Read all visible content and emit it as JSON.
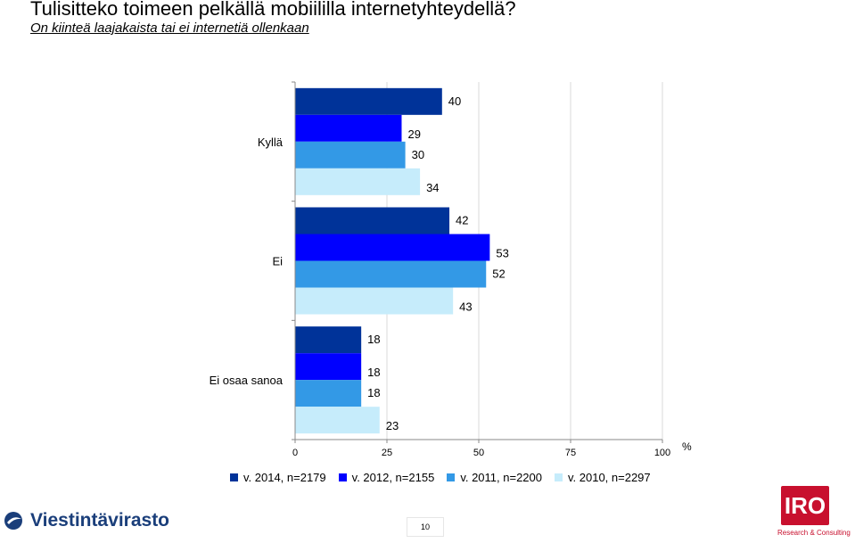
{
  "header": {
    "title": "Tulisitteko toimeen pelkällä mobiililla internetyhteydellä?",
    "subtitle": "On kiinteä laajakaista tai ei internetiä ollenkaan"
  },
  "chart_data": {
    "type": "bar",
    "orientation": "horizontal",
    "categories": [
      "Kyllä",
      "Ei",
      "Ei osaa sanoa"
    ],
    "series": [
      {
        "name": "v. 2014, n=2179",
        "color": "#003399",
        "values": [
          40,
          42,
          18
        ]
      },
      {
        "name": "v. 2012, n=2155",
        "color": "#0000ff",
        "values": [
          29,
          53,
          18
        ]
      },
      {
        "name": "v. 2011, n=2200",
        "color": "#3399e6",
        "values": [
          30,
          52,
          18
        ]
      },
      {
        "name": "v. 2010, n=2297",
        "color": "#c6ecfb",
        "values": [
          34,
          43,
          23
        ]
      }
    ],
    "xlim": [
      0,
      100
    ],
    "xticks": [
      0,
      25,
      50,
      75,
      100
    ],
    "xunit": "%",
    "grid": true,
    "legend_position": "bottom"
  },
  "footer": {
    "page_number": "10",
    "logo_left": "Viestintävirasto",
    "logo_right": "IRO",
    "logo_right_sub": "Research & Consulting"
  }
}
